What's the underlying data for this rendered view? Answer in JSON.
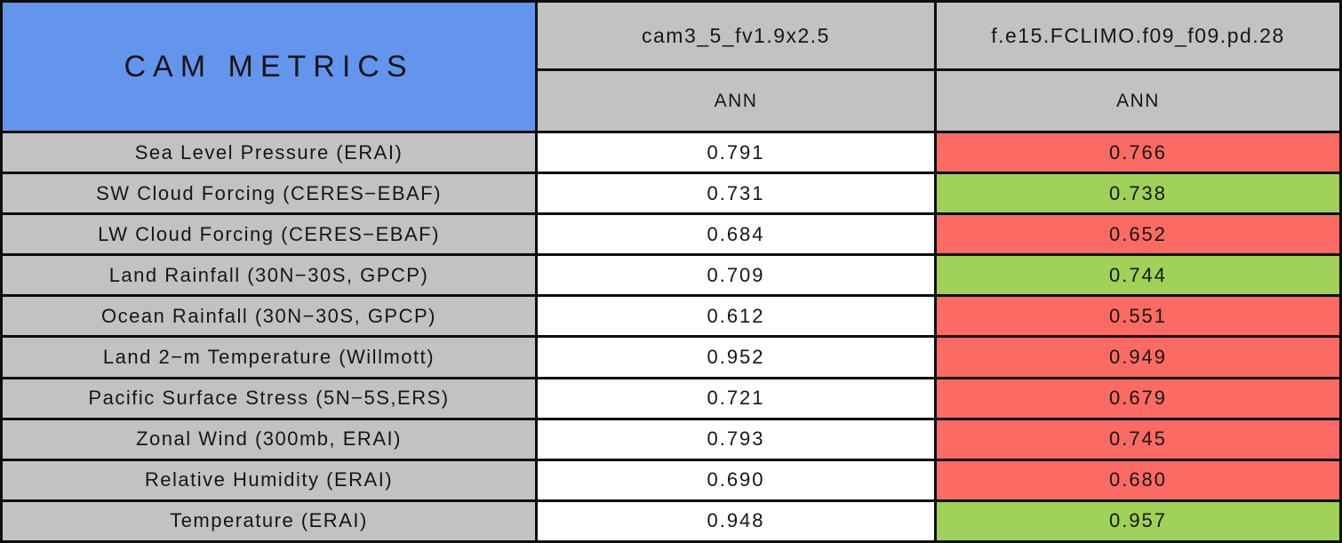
{
  "colors": {
    "blue": "#6495ED",
    "gray": "#C2C2C2",
    "red": "#FC6B63",
    "green": "#A0D158",
    "white": "#FFFFFF",
    "text": "#161616"
  },
  "header": {
    "title": "CAM METRICS",
    "run1_name": "cam3_5_fv1.9x2.5",
    "run2_name": "f.e15.FCLIMO.f09_f09.pd.28",
    "run1_season": "ANN",
    "run2_season": "ANN"
  },
  "rows": [
    {
      "metric": "Sea Level Pressure (ERAI)",
      "run1": "0.791",
      "run2": "0.766",
      "status": "worse"
    },
    {
      "metric": "SW Cloud Forcing (CERES−EBAF)",
      "run1": "0.731",
      "run2": "0.738",
      "status": "better"
    },
    {
      "metric": "LW Cloud Forcing (CERES−EBAF)",
      "run1": "0.684",
      "run2": "0.652",
      "status": "worse"
    },
    {
      "metric": "Land Rainfall (30N−30S, GPCP)",
      "run1": "0.709",
      "run2": "0.744",
      "status": "better"
    },
    {
      "metric": "Ocean Rainfall (30N−30S, GPCP)",
      "run1": "0.612",
      "run2": "0.551",
      "status": "worse"
    },
    {
      "metric": "Land 2−m Temperature (Willmott)",
      "run1": "0.952",
      "run2": "0.949",
      "status": "worse"
    },
    {
      "metric": "Pacific Surface Stress (5N−5S,ERS)",
      "run1": "0.721",
      "run2": "0.679",
      "status": "worse"
    },
    {
      "metric": "Zonal Wind (300mb, ERAI)",
      "run1": "0.793",
      "run2": "0.745",
      "status": "worse"
    },
    {
      "metric": "Relative Humidity (ERAI)",
      "run1": "0.690",
      "run2": "0.680",
      "status": "worse"
    },
    {
      "metric": "Temperature (ERAI)",
      "run1": "0.948",
      "run2": "0.957",
      "status": "better"
    }
  ],
  "chart_data": {
    "type": "table",
    "title": "CAM METRICS",
    "columns": [
      "CAM METRICS",
      "cam3_5_fv1.9x2.5 / ANN",
      "f.e15.FCLIMO.f09_f09.pd.28 / ANN"
    ],
    "rows": [
      [
        "Sea Level Pressure (ERAI)",
        0.791,
        0.766
      ],
      [
        "SW Cloud Forcing (CERES−EBAF)",
        0.731,
        0.738
      ],
      [
        "LW Cloud Forcing (CERES−EBAF)",
        0.684,
        0.652
      ],
      [
        "Land Rainfall (30N−30S, GPCP)",
        0.709,
        0.744
      ],
      [
        "Ocean Rainfall (30N−30S, GPCP)",
        0.612,
        0.551
      ],
      [
        "Land 2−m Temperature (Willmott)",
        0.952,
        0.949
      ],
      [
        "Pacific Surface Stress (5N−5S,ERS)",
        0.721,
        0.679
      ],
      [
        "Zonal Wind (300mb, ERAI)",
        0.793,
        0.745
      ],
      [
        "Relative Humidity (ERAI)",
        0.69,
        0.68
      ],
      [
        "Temperature (ERAI)",
        0.948,
        0.957
      ]
    ],
    "run2_cell_highlights": [
      "red",
      "green",
      "red",
      "green",
      "red",
      "red",
      "red",
      "red",
      "red",
      "green"
    ],
    "highlight_colors": {
      "red": "#FC6B63",
      "green": "#A0D158"
    },
    "layout": {
      "run1_cell_background": "#FFFFFF",
      "metric_column_background": "#C2C2C2",
      "title_background": "#6495ED",
      "grid": true
    }
  }
}
